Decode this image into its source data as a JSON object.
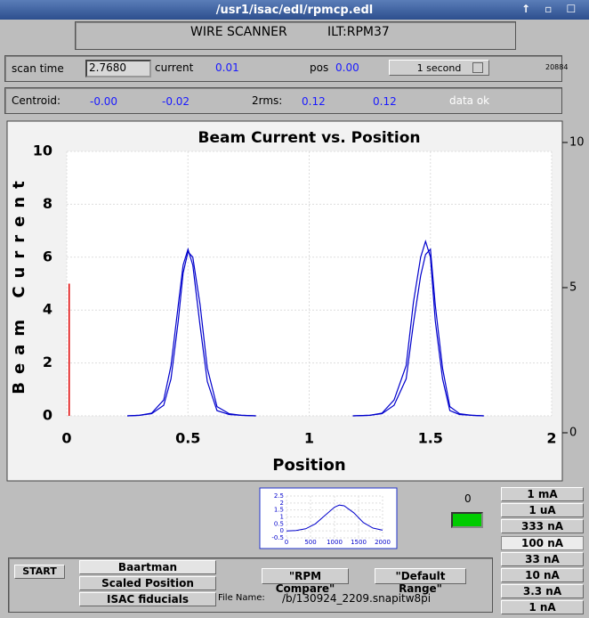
{
  "window": {
    "title": "/usr1/isac/edl/rpmcp.edl"
  },
  "header": {
    "name": "WIRE SCANNER",
    "device": "ILT:RPM37"
  },
  "status": {
    "scan_time_label": "scan time",
    "scan_time": "2.7680",
    "current_label": "current",
    "current": "0.01",
    "pos_label": "pos",
    "pos": "0.00",
    "rate": "1 second",
    "counter": "20884"
  },
  "centroid": {
    "label": "Centroid:",
    "x": "-0.00",
    "y": "-0.02",
    "rms_label": "2rms:",
    "rms_x": "0.12",
    "rms_y": "0.12",
    "state": "data ok"
  },
  "chart_data": [
    {
      "type": "line",
      "title": "Beam Current vs. Position",
      "x_label": "Position",
      "y_label": "Beam Current",
      "x": [
        0.25,
        0.3,
        0.35,
        0.4,
        0.43,
        0.46,
        0.48,
        0.5,
        0.52,
        0.55,
        0.58,
        0.62,
        0.67,
        0.72,
        0.78,
        1.0,
        1.18,
        1.25,
        1.3,
        1.35,
        1.4,
        1.43,
        1.46,
        1.48,
        1.5,
        1.52,
        1.55,
        1.58,
        1.62,
        1.67,
        1.72
      ],
      "series": [
        {
          "color": "#0000cc",
          "values": [
            0,
            0.02,
            0.1,
            0.6,
            1.9,
            4.2,
            5.7,
            6.3,
            5.7,
            3.4,
            1.3,
            0.2,
            0.05,
            0.02,
            0,
            null,
            0,
            0.02,
            0.1,
            0.6,
            1.9,
            4.3,
            6.0,
            6.6,
            6.0,
            3.6,
            1.4,
            0.2,
            0.05,
            0.02,
            0
          ]
        },
        {
          "color": "#0000cc",
          "values": [
            0,
            0.02,
            0.08,
            0.4,
            1.4,
            3.6,
            5.4,
            6.2,
            6.0,
            4.2,
            1.8,
            0.35,
            0.08,
            0.02,
            0,
            null,
            0,
            0.02,
            0.08,
            0.4,
            1.4,
            3.5,
            5.3,
            6.1,
            6.3,
            4.2,
            1.8,
            0.35,
            0.08,
            0.02,
            0
          ]
        }
      ],
      "marker": {
        "x": 0.01,
        "height": 5,
        "color": "#e00000"
      },
      "xlim": [
        0,
        2
      ],
      "xticks": [
        0,
        0.5,
        1,
        1.5,
        2
      ],
      "ylim": [
        0,
        10
      ],
      "yticks": [
        0,
        2,
        4,
        6,
        8,
        10
      ],
      "y2lim": [
        0,
        10
      ],
      "y2ticks": [
        0,
        5,
        10
      ],
      "grid": true
    },
    {
      "type": "line",
      "x": [
        0,
        200,
        400,
        600,
        800,
        1000,
        1100,
        1200,
        1400,
        1600,
        1800,
        2000
      ],
      "series": [
        {
          "color": "#0000cc",
          "values": [
            0,
            0.03,
            0.15,
            0.5,
            1.1,
            1.7,
            1.85,
            1.8,
            1.3,
            0.6,
            0.2,
            0.05
          ]
        }
      ],
      "xlim": [
        0,
        2000
      ],
      "xticks": [
        0,
        500,
        1000,
        1500,
        2000
      ],
      "ylim": [
        -0.5,
        2.5
      ],
      "yticks": [
        -0.5,
        0,
        0.5,
        1,
        1.5,
        2,
        2.5
      ],
      "grid": true
    }
  ],
  "indicator": {
    "value": "0",
    "color": "#00cc00"
  },
  "ranges": {
    "items": [
      "1 mA",
      "1 uA",
      "333 nA",
      "100 nA",
      "33 nA",
      "10 nA",
      "3.3 nA",
      "1 nA"
    ],
    "selected": 3
  },
  "controls": {
    "start": "START",
    "options": [
      "Baartman",
      "Scaled Position",
      "ISAC fiducials"
    ],
    "buttons": [
      "\"RPM Compare\"",
      "\"Default Range\""
    ],
    "file_label": "File Name:",
    "file": "/b/130924_2209.snapitw8pi"
  }
}
